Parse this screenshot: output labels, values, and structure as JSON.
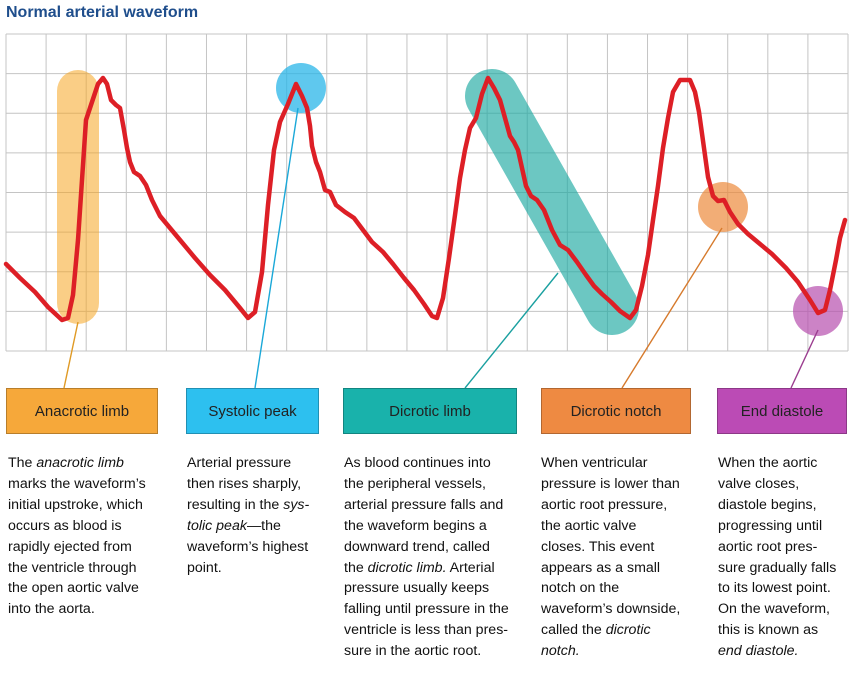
{
  "title": "Normal arterial waveform",
  "colors": {
    "waveform": "#dd1f26",
    "grid": "#bdbdbd",
    "anacrotic": "#f5a623",
    "systolic": "#29b6e8",
    "dicrotic_limb": "#1eaaa3",
    "dicrotic_notch": "#ec8a3c",
    "end_diastole": "#b64fae"
  },
  "labels": {
    "anacrotic": "Anacrotic limb",
    "systolic": "Systolic peak",
    "dicrotic_limb": "Dicrotic limb",
    "dicrotic_notch": "Dicrotic notch",
    "end_diastole": "End diastole"
  },
  "descriptions": {
    "anacrotic": [
      {
        "parts": [
          {
            "t": "The "
          },
          {
            "t": "anacrotic limb",
            "i": true
          }
        ]
      },
      {
        "parts": [
          {
            "t": "marks the waveform’s"
          }
        ]
      },
      {
        "parts": [
          {
            "t": "initial upstroke, which"
          }
        ]
      },
      {
        "parts": [
          {
            "t": "occurs as blood is"
          }
        ]
      },
      {
        "parts": [
          {
            "t": "rapidly ejected from"
          }
        ]
      },
      {
        "parts": [
          {
            "t": "the ventricle through"
          }
        ]
      },
      {
        "parts": [
          {
            "t": "the open aortic valve"
          }
        ]
      },
      {
        "parts": [
          {
            "t": "into the aorta."
          }
        ]
      }
    ],
    "systolic": [
      {
        "parts": [
          {
            "t": "Arterial pressure"
          }
        ]
      },
      {
        "parts": [
          {
            "t": "then rises sharply,"
          }
        ]
      },
      {
        "parts": [
          {
            "t": "resulting in the "
          },
          {
            "t": "sys-",
            "i": true
          }
        ]
      },
      {
        "parts": [
          {
            "t": "tolic peak",
            "i": true
          },
          {
            "t": "—the"
          }
        ]
      },
      {
        "parts": [
          {
            "t": "waveform’s highest"
          }
        ]
      },
      {
        "parts": [
          {
            "t": "point."
          }
        ]
      }
    ],
    "dicrotic_limb": [
      {
        "parts": [
          {
            "t": "As blood continues into"
          }
        ]
      },
      {
        "parts": [
          {
            "t": "the peripheral vessels,"
          }
        ]
      },
      {
        "parts": [
          {
            "t": "arterial pressure falls and"
          }
        ]
      },
      {
        "parts": [
          {
            "t": "the waveform begins a"
          }
        ]
      },
      {
        "parts": [
          {
            "t": "downward trend, called"
          }
        ]
      },
      {
        "parts": [
          {
            "t": "the "
          },
          {
            "t": "dicrotic limb.",
            "i": true
          },
          {
            "t": " Arterial"
          }
        ]
      },
      {
        "parts": [
          {
            "t": "pressure usually keeps"
          }
        ]
      },
      {
        "parts": [
          {
            "t": "falling until pressure in the"
          }
        ]
      },
      {
        "parts": [
          {
            "t": "ventricle is less than pres-"
          }
        ]
      },
      {
        "parts": [
          {
            "t": "sure in the aortic root."
          }
        ]
      }
    ],
    "dicrotic_notch": [
      {
        "parts": [
          {
            "t": "When ventricular"
          }
        ]
      },
      {
        "parts": [
          {
            "t": "pressure is lower than"
          }
        ]
      },
      {
        "parts": [
          {
            "t": "aortic root pressure,"
          }
        ]
      },
      {
        "parts": [
          {
            "t": "the aortic valve"
          }
        ]
      },
      {
        "parts": [
          {
            "t": "closes. This event"
          }
        ]
      },
      {
        "parts": [
          {
            "t": "appears as a small"
          }
        ]
      },
      {
        "parts": [
          {
            "t": "notch on the"
          }
        ]
      },
      {
        "parts": [
          {
            "t": "waveform’s downside,"
          }
        ]
      },
      {
        "parts": [
          {
            "t": "called the "
          },
          {
            "t": "dicrotic",
            "i": true
          }
        ]
      },
      {
        "parts": [
          {
            "t": "notch.",
            "i": true
          }
        ]
      }
    ],
    "end_diastole": [
      {
        "parts": [
          {
            "t": "When the aortic"
          }
        ]
      },
      {
        "parts": [
          {
            "t": "valve closes,"
          }
        ]
      },
      {
        "parts": [
          {
            "t": "diastole begins,"
          }
        ]
      },
      {
        "parts": [
          {
            "t": "progressing until"
          }
        ]
      },
      {
        "parts": [
          {
            "t": "aortic root pres-"
          }
        ]
      },
      {
        "parts": [
          {
            "t": "sure gradually falls"
          }
        ]
      },
      {
        "parts": [
          {
            "t": "to its lowest point."
          }
        ]
      },
      {
        "parts": [
          {
            "t": "On the waveform,"
          }
        ]
      },
      {
        "parts": [
          {
            "t": "this is known as"
          }
        ]
      },
      {
        "parts": [
          {
            "t": "end diastole.",
            "i": true
          }
        ]
      }
    ]
  }
}
